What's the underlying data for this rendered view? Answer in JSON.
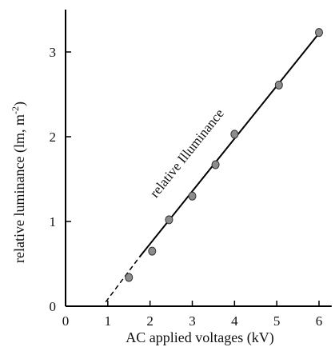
{
  "chart_data": {
    "type": "scatter",
    "x_ticks": [
      "0",
      "1",
      "2",
      "3",
      "4",
      "5",
      "6"
    ],
    "y_ticks": [
      "0",
      "1",
      "2",
      "3"
    ],
    "xlabel": "AC applied voltages  (kV)",
    "ylabel_main": "relative luminance (lm, m",
    "ylabel_sup": "-2",
    "ylabel_close": ")",
    "xlim": [
      0,
      6.3
    ],
    "ylim": [
      0,
      3.5
    ],
    "points": [
      {
        "x": 1.5,
        "y": 0.34
      },
      {
        "x": 2.05,
        "y": 0.65
      },
      {
        "x": 2.45,
        "y": 1.02
      },
      {
        "x": 3.0,
        "y": 1.3
      },
      {
        "x": 3.55,
        "y": 1.67
      },
      {
        "x": 4.0,
        "y": 2.03
      },
      {
        "x": 5.05,
        "y": 2.61
      },
      {
        "x": 6.0,
        "y": 3.23
      }
    ],
    "fit_line": {
      "dashed_from": {
        "x": 0.95,
        "y": 0.05
      },
      "solid_from": {
        "x": 1.75,
        "y": 0.58
      },
      "to": {
        "x": 6.0,
        "y": 3.22
      }
    },
    "annotation": "relative Illuminance",
    "marker_color": "#8c8c8c",
    "line_color": "#000000",
    "grid": false,
    "legend": "none"
  }
}
